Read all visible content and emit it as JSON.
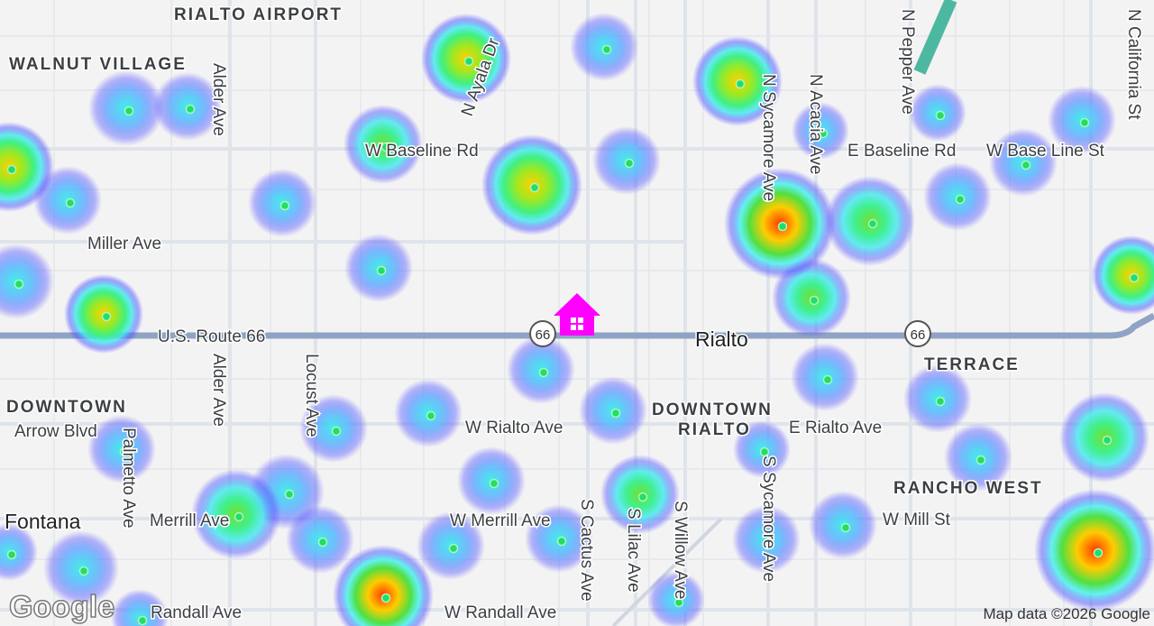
{
  "labels": {
    "rialto_airport": "RIALTO AIRPORT",
    "walnut_village": "WALNUT VILLAGE",
    "alder_ave_north": "Alder Ave",
    "n_ayala_dr": "N Ayala Dr",
    "w_baseline_rd": "W Baseline Rd",
    "n_sycamore_ave": "N Sycamore Ave",
    "n_acacia_ave": "N Acacia Ave",
    "n_pepper_ave": "N Pepper Ave",
    "n_california_st": "N California St",
    "e_baseline_rd": "E Baseline Rd",
    "w_base_line_st": "W Base Line St",
    "miller_ave": "Miller Ave",
    "us_route_66": "U.S. Route 66",
    "shield_west": "66",
    "shield_east": "66",
    "rialto": "Rialto",
    "terrace": "TERRACE",
    "downtown": "DOWNTOWN",
    "arrow_blvd": "Arrow Blvd",
    "alder_ave_south": "Alder Ave",
    "locust_ave": "Locust Ave",
    "palmetto_ave": "Palmetto Ave",
    "w_rialto_ave": "W Rialto Ave",
    "downtown_rialto_1": "DOWNTOWN",
    "downtown_rialto_2": "RIALTO",
    "e_rialto_ave": "E Rialto Ave",
    "s_sycamore_ave": "S Sycamore Ave",
    "rancho_west": "RANCHO WEST",
    "fontana": "Fontana",
    "merrill_ave": "Merrill Ave",
    "w_merrill_ave": "W Merrill Ave",
    "s_cactus_ave": "S Cactus Ave",
    "s_lilac_ave": "S Lilac Ave",
    "s_willow_ave": "S Willow Ave",
    "w_mill_st": "W Mill St",
    "randall_ave": "Randall Ave",
    "w_randall_ave": "W Randall Ave"
  },
  "logo": "Google",
  "attribution": "Map data ©2026 Google"
}
